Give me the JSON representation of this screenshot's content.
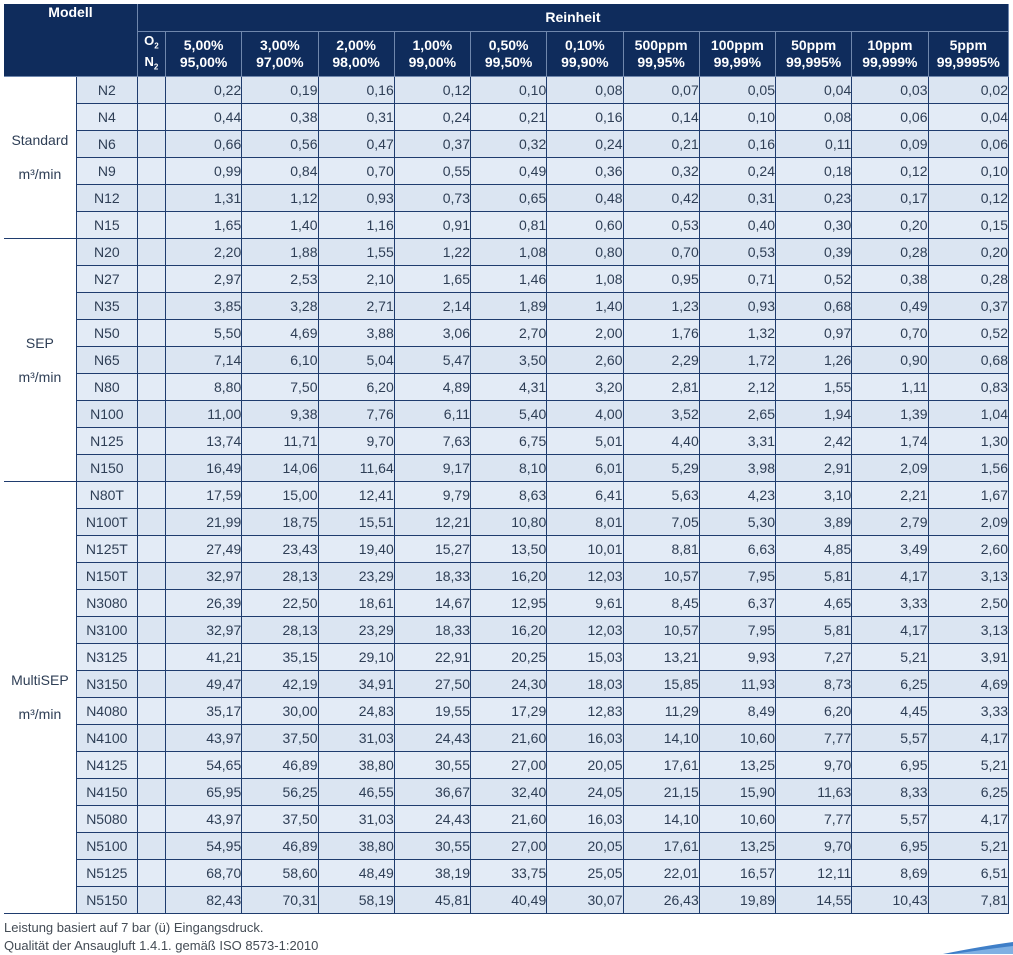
{
  "header": {
    "modell": "Modell",
    "reinheit": "Reinheit",
    "o2": "O",
    "o2_sub": "2",
    "n2": "N",
    "n2_sub": "2",
    "columns": [
      {
        "o2": "5,00%",
        "n2": "95,00%"
      },
      {
        "o2": "3,00%",
        "n2": "97,00%"
      },
      {
        "o2": "2,00%",
        "n2": "98,00%"
      },
      {
        "o2": "1,00%",
        "n2": "99,00%"
      },
      {
        "o2": "0,50%",
        "n2": "99,50%"
      },
      {
        "o2": "0,10%",
        "n2": "99,90%"
      },
      {
        "o2": "500ppm",
        "n2": "99,95%"
      },
      {
        "o2": "100ppm",
        "n2": "99,99%"
      },
      {
        "o2": "50ppm",
        "n2": "99,995%"
      },
      {
        "o2": "10ppm",
        "n2": "99,999%"
      },
      {
        "o2": "5ppm",
        "n2": "99,9995%"
      }
    ]
  },
  "groups": [
    {
      "name": "Standard",
      "unit": "m³/min",
      "rows": [
        {
          "model": "N2",
          "values": [
            "0,22",
            "0,19",
            "0,16",
            "0,12",
            "0,10",
            "0,08",
            "0,07",
            "0,05",
            "0,04",
            "0,03",
            "0,02"
          ]
        },
        {
          "model": "N4",
          "values": [
            "0,44",
            "0,38",
            "0,31",
            "0,24",
            "0,21",
            "0,16",
            "0,14",
            "0,10",
            "0,08",
            "0,06",
            "0,04"
          ]
        },
        {
          "model": "N6",
          "values": [
            "0,66",
            "0,56",
            "0,47",
            "0,37",
            "0,32",
            "0,24",
            "0,21",
            "0,16",
            "0,11",
            "0,09",
            "0,06"
          ]
        },
        {
          "model": "N9",
          "values": [
            "0,99",
            "0,84",
            "0,70",
            "0,55",
            "0,49",
            "0,36",
            "0,32",
            "0,24",
            "0,18",
            "0,12",
            "0,10"
          ]
        },
        {
          "model": "N12",
          "values": [
            "1,31",
            "1,12",
            "0,93",
            "0,73",
            "0,65",
            "0,48",
            "0,42",
            "0,31",
            "0,23",
            "0,17",
            "0,12"
          ]
        },
        {
          "model": "N15",
          "values": [
            "1,65",
            "1,40",
            "1,16",
            "0,91",
            "0,81",
            "0,60",
            "0,53",
            "0,40",
            "0,30",
            "0,20",
            "0,15"
          ]
        }
      ]
    },
    {
      "name": "SEP",
      "unit": "m³/min",
      "rows": [
        {
          "model": "N20",
          "values": [
            "2,20",
            "1,88",
            "1,55",
            "1,22",
            "1,08",
            "0,80",
            "0,70",
            "0,53",
            "0,39",
            "0,28",
            "0,20"
          ]
        },
        {
          "model": "N27",
          "values": [
            "2,97",
            "2,53",
            "2,10",
            "1,65",
            "1,46",
            "1,08",
            "0,95",
            "0,71",
            "0,52",
            "0,38",
            "0,28"
          ]
        },
        {
          "model": "N35",
          "values": [
            "3,85",
            "3,28",
            "2,71",
            "2,14",
            "1,89",
            "1,40",
            "1,23",
            "0,93",
            "0,68",
            "0,49",
            "0,37"
          ]
        },
        {
          "model": "N50",
          "values": [
            "5,50",
            "4,69",
            "3,88",
            "3,06",
            "2,70",
            "2,00",
            "1,76",
            "1,32",
            "0,97",
            "0,70",
            "0,52"
          ]
        },
        {
          "model": "N65",
          "values": [
            "7,14",
            "6,10",
            "5,04",
            "5,47",
            "3,50",
            "2,60",
            "2,29",
            "1,72",
            "1,26",
            "0,90",
            "0,68"
          ]
        },
        {
          "model": "N80",
          "values": [
            "8,80",
            "7,50",
            "6,20",
            "4,89",
            "4,31",
            "3,20",
            "2,81",
            "2,12",
            "1,55",
            "1,11",
            "0,83"
          ]
        },
        {
          "model": "N100",
          "values": [
            "11,00",
            "9,38",
            "7,76",
            "6,11",
            "5,40",
            "4,00",
            "3,52",
            "2,65",
            "1,94",
            "1,39",
            "1,04"
          ]
        },
        {
          "model": "N125",
          "values": [
            "13,74",
            "11,71",
            "9,70",
            "7,63",
            "6,75",
            "5,01",
            "4,40",
            "3,31",
            "2,42",
            "1,74",
            "1,30"
          ]
        },
        {
          "model": "N150",
          "values": [
            "16,49",
            "14,06",
            "11,64",
            "9,17",
            "8,10",
            "6,01",
            "5,29",
            "3,98",
            "2,91",
            "2,09",
            "1,56"
          ]
        }
      ]
    },
    {
      "name": "MultiSEP",
      "unit": "m³/min",
      "rows": [
        {
          "model": "N80T",
          "values": [
            "17,59",
            "15,00",
            "12,41",
            "9,79",
            "8,63",
            "6,41",
            "5,63",
            "4,23",
            "3,10",
            "2,21",
            "1,67"
          ]
        },
        {
          "model": "N100T",
          "values": [
            "21,99",
            "18,75",
            "15,51",
            "12,21",
            "10,80",
            "8,01",
            "7,05",
            "5,30",
            "3,89",
            "2,79",
            "2,09"
          ]
        },
        {
          "model": "N125T",
          "values": [
            "27,49",
            "23,43",
            "19,40",
            "15,27",
            "13,50",
            "10,01",
            "8,81",
            "6,63",
            "4,85",
            "3,49",
            "2,60"
          ]
        },
        {
          "model": "N150T",
          "values": [
            "32,97",
            "28,13",
            "23,29",
            "18,33",
            "16,20",
            "12,03",
            "10,57",
            "7,95",
            "5,81",
            "4,17",
            "3,13"
          ]
        },
        {
          "model": "N3080",
          "values": [
            "26,39",
            "22,50",
            "18,61",
            "14,67",
            "12,95",
            "9,61",
            "8,45",
            "6,37",
            "4,65",
            "3,33",
            "2,50"
          ]
        },
        {
          "model": "N3100",
          "values": [
            "32,97",
            "28,13",
            "23,29",
            "18,33",
            "16,20",
            "12,03",
            "10,57",
            "7,95",
            "5,81",
            "4,17",
            "3,13"
          ]
        },
        {
          "model": "N3125",
          "values": [
            "41,21",
            "35,15",
            "29,10",
            "22,91",
            "20,25",
            "15,03",
            "13,21",
            "9,93",
            "7,27",
            "5,21",
            "3,91"
          ]
        },
        {
          "model": "N3150",
          "values": [
            "49,47",
            "42,19",
            "34,91",
            "27,50",
            "24,30",
            "18,03",
            "15,85",
            "11,93",
            "8,73",
            "6,25",
            "4,69"
          ]
        },
        {
          "model": "N4080",
          "values": [
            "35,17",
            "30,00",
            "24,83",
            "19,55",
            "17,29",
            "12,83",
            "11,29",
            "8,49",
            "6,20",
            "4,45",
            "3,33"
          ]
        },
        {
          "model": "N4100",
          "values": [
            "43,97",
            "37,50",
            "31,03",
            "24,43",
            "21,60",
            "16,03",
            "14,10",
            "10,60",
            "7,77",
            "5,57",
            "4,17"
          ]
        },
        {
          "model": "N4125",
          "values": [
            "54,65",
            "46,89",
            "38,80",
            "30,55",
            "27,00",
            "20,05",
            "17,61",
            "13,25",
            "9,70",
            "6,95",
            "5,21"
          ]
        },
        {
          "model": "N4150",
          "values": [
            "65,95",
            "56,25",
            "46,55",
            "36,67",
            "32,40",
            "24,05",
            "21,15",
            "15,90",
            "11,63",
            "8,33",
            "6,25"
          ]
        },
        {
          "model": "N5080",
          "values": [
            "43,97",
            "37,50",
            "31,03",
            "24,43",
            "21,60",
            "16,03",
            "14,10",
            "10,60",
            "7,77",
            "5,57",
            "4,17"
          ]
        },
        {
          "model": "N5100",
          "values": [
            "54,95",
            "46,89",
            "38,80",
            "30,55",
            "27,00",
            "20,05",
            "17,61",
            "13,25",
            "9,70",
            "6,95",
            "5,21"
          ]
        },
        {
          "model": "N5125",
          "values": [
            "68,70",
            "58,60",
            "48,49",
            "38,19",
            "33,75",
            "25,05",
            "22,01",
            "16,57",
            "12,11",
            "8,69",
            "6,51"
          ]
        },
        {
          "model": "N5150",
          "values": [
            "82,43",
            "70,31",
            "58,19",
            "45,81",
            "40,49",
            "30,07",
            "26,43",
            "19,89",
            "14,55",
            "10,43",
            "7,81"
          ]
        }
      ]
    }
  ],
  "footer": {
    "line1": "Leistung basiert auf 7 bar (ü) Eingangsdruck.",
    "line2": "Qualität der Ansaugluft 1.4.1. gemäß ISO 8573-1:2010"
  },
  "colors": {
    "header_bg": "#0f2c5c",
    "cell_bg": "#dde7f3",
    "border": "#1f3c6e",
    "text": "#2e3e55"
  }
}
